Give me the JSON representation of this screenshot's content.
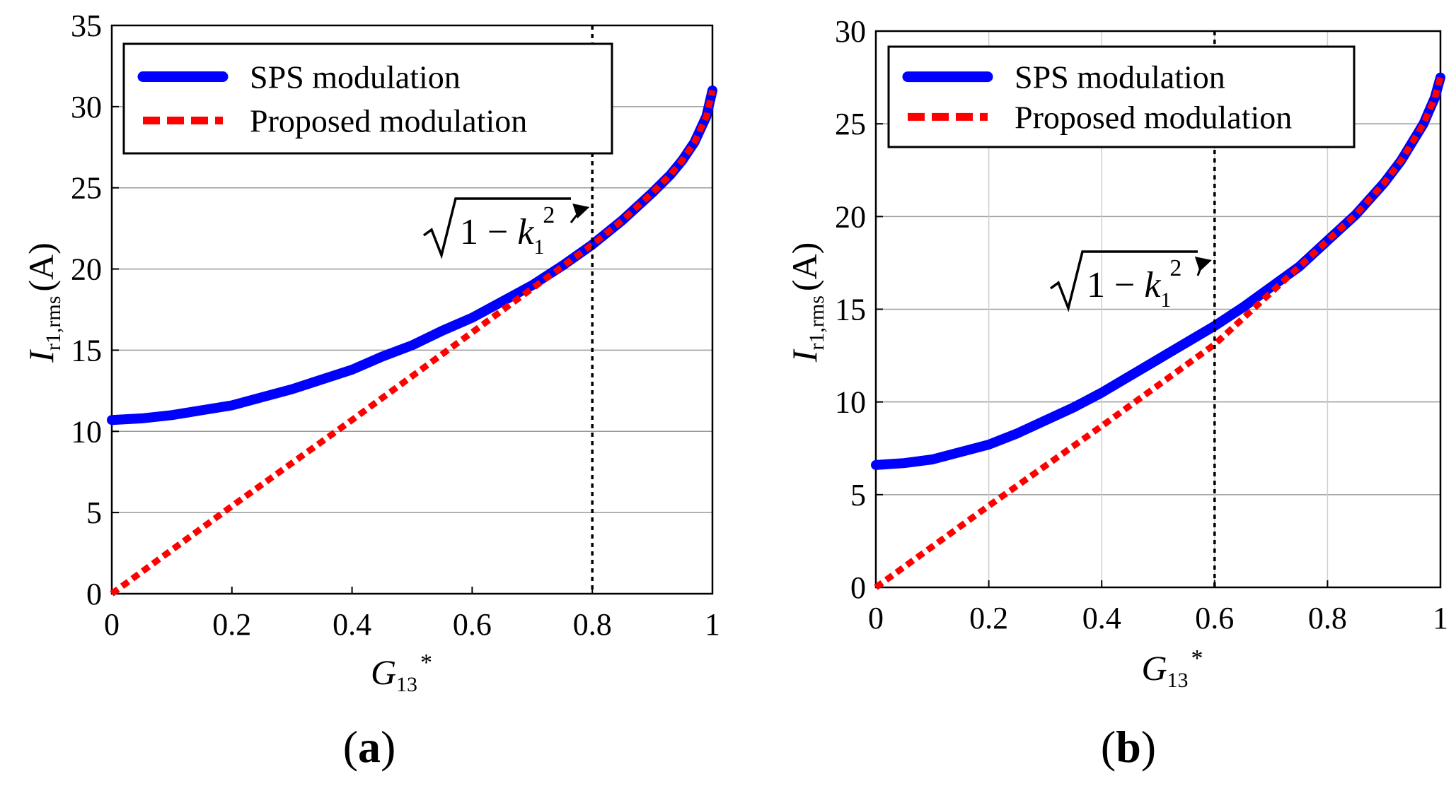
{
  "chart_data": [
    {
      "type": "line",
      "panel_label": "a",
      "xlabel": "G",
      "xlabel_sub": "13",
      "xlabel_sup": "*",
      "ylabel": "I",
      "ylabel_sub": "r1,rms",
      "ylabel_unit": "(A)",
      "xlim": [
        0,
        1
      ],
      "ylim": [
        0,
        35
      ],
      "xticks": [
        0,
        0.2,
        0.4,
        0.6,
        0.8,
        1
      ],
      "xtick_labels": [
        "0",
        "0.2",
        "0.4",
        "0.6",
        "0.8",
        "1"
      ],
      "yticks": [
        0,
        5,
        10,
        15,
        20,
        25,
        30,
        35
      ],
      "ytick_labels": [
        "0",
        "5",
        "10",
        "15",
        "20",
        "25",
        "30",
        "35"
      ],
      "grid": "horizontal",
      "legend_position": "top-left",
      "threshold_x": 0.8,
      "annotation": {
        "radicand_prefix": "1 − ",
        "k": "k",
        "k_sub": "1",
        "k_sup": "2",
        "points_to_x": 0.8
      },
      "series": [
        {
          "name": "SPS modulation",
          "color": "#0000ff",
          "style": "solid",
          "x": [
            0,
            0.05,
            0.1,
            0.15,
            0.2,
            0.25,
            0.3,
            0.35,
            0.4,
            0.45,
            0.5,
            0.55,
            0.6,
            0.65,
            0.7,
            0.75,
            0.8,
            0.85,
            0.9,
            0.93,
            0.95,
            0.97,
            0.98,
            0.99,
            1.0
          ],
          "values": [
            10.7,
            10.8,
            11.0,
            11.3,
            11.6,
            12.1,
            12.6,
            13.2,
            13.8,
            14.6,
            15.3,
            16.2,
            17.0,
            18.0,
            19.0,
            20.2,
            21.5,
            23.0,
            24.7,
            25.8,
            26.7,
            27.8,
            28.6,
            29.4,
            31.0
          ]
        },
        {
          "name": "Proposed modulation",
          "color": "#ff0000",
          "style": "dashed",
          "x": [
            0,
            0.2,
            0.4,
            0.6,
            0.8,
            0.85,
            0.9,
            0.93,
            0.95,
            0.97,
            0.98,
            0.99,
            1.0
          ],
          "values": [
            0,
            5.4,
            10.7,
            16.1,
            21.5,
            23.0,
            24.7,
            25.8,
            26.7,
            27.8,
            28.6,
            29.4,
            31.0
          ]
        }
      ]
    },
    {
      "type": "line",
      "panel_label": "b",
      "xlabel": "G",
      "xlabel_sub": "13",
      "xlabel_sup": "*",
      "ylabel": "I",
      "ylabel_sub": "r1,rms",
      "ylabel_unit": "(A)",
      "xlim": [
        0,
        1
      ],
      "ylim": [
        0,
        30
      ],
      "xticks": [
        0,
        0.2,
        0.4,
        0.6,
        0.8,
        1
      ],
      "xtick_labels": [
        "0",
        "0.2",
        "0.4",
        "0.6",
        "0.8",
        "1"
      ],
      "yticks": [
        0,
        5,
        10,
        15,
        20,
        25,
        30
      ],
      "ytick_labels": [
        "0",
        "5",
        "10",
        "15",
        "20",
        "25",
        "30"
      ],
      "grid": "both",
      "legend_position": "top-left",
      "threshold_x": 0.6,
      "annotation": {
        "radicand_prefix": "1 − ",
        "k": "k",
        "k_sub": "1",
        "k_sup": "2",
        "points_to_x": 0.6
      },
      "series": [
        {
          "name": "SPS modulation",
          "color": "#0000ff",
          "style": "solid",
          "x": [
            0,
            0.05,
            0.1,
            0.15,
            0.2,
            0.25,
            0.3,
            0.35,
            0.4,
            0.45,
            0.5,
            0.55,
            0.6,
            0.65,
            0.7,
            0.75,
            0.8,
            0.85,
            0.9,
            0.93,
            0.95,
            0.97,
            0.98,
            0.99,
            1.0
          ],
          "values": [
            6.6,
            6.7,
            6.9,
            7.3,
            7.7,
            8.3,
            9.0,
            9.7,
            10.5,
            11.4,
            12.3,
            13.2,
            14.1,
            15.1,
            16.2,
            17.3,
            18.7,
            20.1,
            21.8,
            23.0,
            24.0,
            25.0,
            25.7,
            26.4,
            27.5
          ]
        },
        {
          "name": "Proposed modulation",
          "color": "#ff0000",
          "style": "dashed",
          "x": [
            0,
            0.2,
            0.4,
            0.6,
            0.65,
            0.7,
            0.75,
            0.8,
            0.85,
            0.9,
            0.93,
            0.95,
            0.97,
            0.98,
            0.99,
            1.0
          ],
          "values": [
            0,
            4.4,
            8.7,
            13.1,
            14.5,
            15.9,
            17.3,
            18.7,
            20.1,
            21.8,
            23.0,
            24.0,
            25.0,
            25.7,
            26.4,
            27.5
          ]
        }
      ]
    }
  ]
}
